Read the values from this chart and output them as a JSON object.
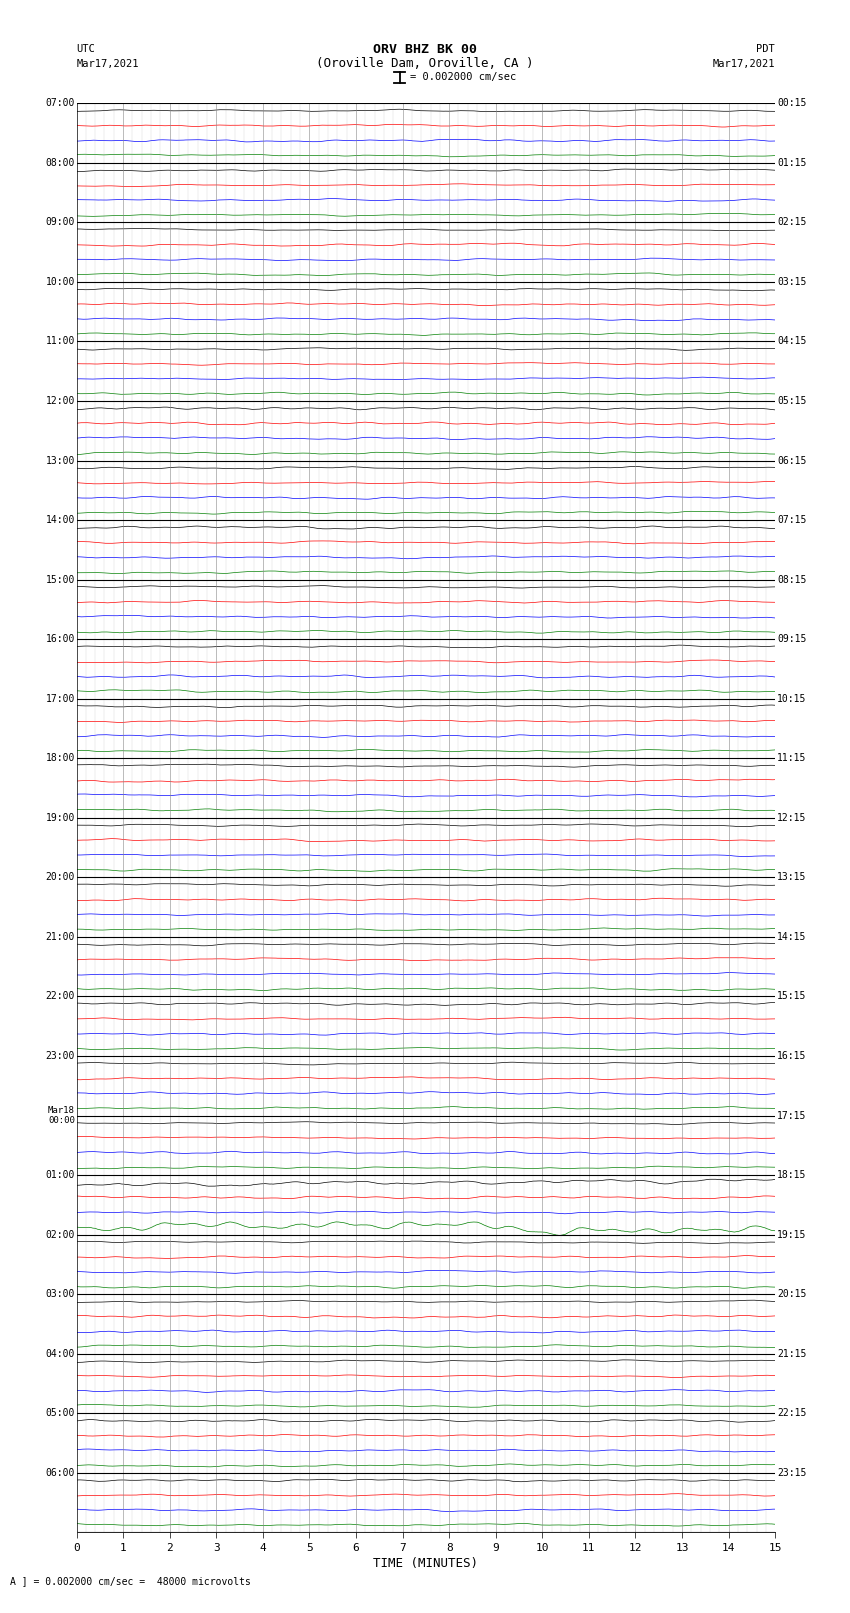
{
  "title_line1": "ORV BHZ BK 00",
  "title_line2": "(Oroville Dam, Oroville, CA )",
  "scale_label": "= 0.002000 cm/sec",
  "bottom_label": "= 0.002000 cm/sec =  48000 microvolts",
  "left_header_line1": "UTC",
  "left_header_line2": "Mar17,2021",
  "right_header_line1": "PDT",
  "right_header_line2": "Mar17,2021",
  "xlabel": "TIME (MINUTES)",
  "xlim": [
    0,
    15
  ],
  "xticks": [
    0,
    1,
    2,
    3,
    4,
    5,
    6,
    7,
    8,
    9,
    10,
    11,
    12,
    13,
    14,
    15
  ],
  "left_times": [
    "07:00",
    "08:00",
    "09:00",
    "10:00",
    "11:00",
    "12:00",
    "13:00",
    "14:00",
    "15:00",
    "16:00",
    "17:00",
    "18:00",
    "19:00",
    "20:00",
    "21:00",
    "22:00",
    "23:00",
    "Mar18\n00:00",
    "01:00",
    "02:00",
    "03:00",
    "04:00",
    "05:00",
    "06:00"
  ],
  "right_times": [
    "00:15",
    "01:15",
    "02:15",
    "03:15",
    "04:15",
    "05:15",
    "06:15",
    "07:15",
    "08:15",
    "09:15",
    "10:15",
    "11:15",
    "12:15",
    "13:15",
    "14:15",
    "15:15",
    "16:15",
    "17:15",
    "18:15",
    "19:15",
    "20:15",
    "21:15",
    "22:15",
    "23:15"
  ],
  "trace_colors": [
    "black",
    "red",
    "blue",
    "green"
  ],
  "n_hour_blocks": 24,
  "traces_per_block": 4,
  "fig_width": 8.5,
  "fig_height": 16.13,
  "dpi": 100,
  "bg_color": "white",
  "noise_amplitude": 0.1,
  "special_block": 18,
  "special_color_idx": 3,
  "special_amplitude": 0.55,
  "vertical_grid_color": "#888888",
  "vertical_grid_lw": 0.4,
  "separator_lw": 0.8,
  "trace_lw": 0.5
}
